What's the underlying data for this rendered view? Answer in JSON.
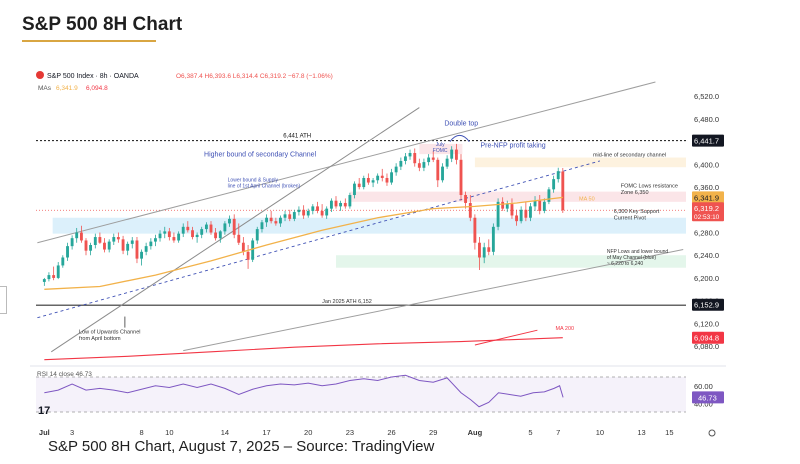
{
  "page": {
    "title": "S&P 500 8H Chart",
    "caption": "S&P 500 8H Chart, August 7, 2025 – Source: TradingView"
  },
  "chart_data": {
    "type": "candlestick",
    "instrument": "S&P 500 Index · 8h · OANDA",
    "ohlc_header": {
      "O": "6,387.4",
      "H": "6,393.6",
      "L": "6,314.4",
      "C": "6,319.2",
      "change": "−67.8 (−1.06%)"
    },
    "ma_header": {
      "label": "MAs",
      "ma50": "6,341.9",
      "ma200": "6,094.8"
    },
    "x_ticks": [
      {
        "label": "Jul",
        "day": 0,
        "bold": true
      },
      {
        "label": "3",
        "day": 2
      },
      {
        "label": "8",
        "day": 7
      },
      {
        "label": "10",
        "day": 9
      },
      {
        "label": "14",
        "day": 13
      },
      {
        "label": "17",
        "day": 16
      },
      {
        "label": "20",
        "day": 19
      },
      {
        "label": "23",
        "day": 22
      },
      {
        "label": "26",
        "day": 25
      },
      {
        "label": "29",
        "day": 28
      },
      {
        "label": "Aug",
        "day": 31,
        "bold": true
      },
      {
        "label": "5",
        "day": 35
      },
      {
        "label": "7",
        "day": 37
      },
      {
        "label": "10",
        "day": 40
      },
      {
        "label": "13",
        "day": 43
      },
      {
        "label": "15",
        "day": 45
      }
    ],
    "y_ticks": [
      "6,080.0",
      "6,120.0",
      "6,160.0",
      "6,200.0",
      "6,240.0",
      "6,280.0",
      "6,320.0",
      "6,360.0",
      "6,400.0",
      "6,440.0",
      "6,480.0",
      "6,520.0"
    ],
    "y_tick_values": [
      6080,
      6120,
      6160,
      6200,
      6240,
      6280,
      6320,
      6360,
      6400,
      6440,
      6480,
      6520
    ],
    "ylim": [
      6052,
      6545
    ],
    "xlim": [
      -0.6,
      46.2
    ],
    "candles": [
      [
        0.0,
        6193,
        6200,
        6186,
        6198
      ],
      [
        0.33,
        6198,
        6210,
        6194,
        6205
      ],
      [
        0.67,
        6205,
        6220,
        6196,
        6200
      ],
      [
        1.0,
        6200,
        6228,
        6198,
        6222
      ],
      [
        1.33,
        6222,
        6240,
        6218,
        6236
      ],
      [
        1.67,
        6236,
        6262,
        6230,
        6256
      ],
      [
        2.0,
        6256,
        6275,
        6250,
        6270
      ],
      [
        2.33,
        6270,
        6288,
        6262,
        6280
      ],
      [
        2.67,
        6280,
        6292,
        6262,
        6266
      ],
      [
        3.0,
        6266,
        6270,
        6240,
        6248
      ],
      [
        3.33,
        6248,
        6262,
        6240,
        6258
      ],
      [
        3.67,
        6258,
        6278,
        6252,
        6272
      ],
      [
        4.0,
        6272,
        6280,
        6260,
        6262
      ],
      [
        4.33,
        6262,
        6270,
        6245,
        6250
      ],
      [
        4.67,
        6250,
        6268,
        6245,
        6264
      ],
      [
        5.0,
        6264,
        6278,
        6258,
        6272
      ],
      [
        5.33,
        6272,
        6280,
        6262,
        6268
      ],
      [
        5.67,
        6268,
        6274,
        6242,
        6248
      ],
      [
        6.0,
        6248,
        6264,
        6240,
        6260
      ],
      [
        6.33,
        6260,
        6272,
        6252,
        6266
      ],
      [
        6.67,
        6266,
        6272,
        6226,
        6234
      ],
      [
        7.0,
        6234,
        6250,
        6222,
        6246
      ],
      [
        7.33,
        6246,
        6262,
        6240,
        6256
      ],
      [
        7.67,
        6256,
        6270,
        6250,
        6264
      ],
      [
        8.0,
        6264,
        6276,
        6256,
        6270
      ],
      [
        8.33,
        6270,
        6284,
        6264,
        6278
      ],
      [
        8.67,
        6278,
        6290,
        6270,
        6282
      ],
      [
        9.0,
        6282,
        6288,
        6266,
        6272
      ],
      [
        9.33,
        6272,
        6280,
        6262,
        6266
      ],
      [
        9.67,
        6266,
        6282,
        6262,
        6278
      ],
      [
        10.0,
        6278,
        6296,
        6272,
        6290
      ],
      [
        10.33,
        6290,
        6300,
        6280,
        6284
      ],
      [
        10.67,
        6284,
        6290,
        6268,
        6272
      ],
      [
        11.0,
        6272,
        6280,
        6262,
        6276
      ],
      [
        11.33,
        6276,
        6290,
        6270,
        6286
      ],
      [
        11.67,
        6286,
        6298,
        6280,
        6294
      ],
      [
        12.0,
        6294,
        6300,
        6276,
        6280
      ],
      [
        12.33,
        6280,
        6288,
        6266,
        6270
      ],
      [
        12.67,
        6270,
        6284,
        6262,
        6282
      ],
      [
        13.0,
        6282,
        6300,
        6276,
        6296
      ],
      [
        13.33,
        6296,
        6310,
        6290,
        6304
      ],
      [
        13.67,
        6304,
        6312,
        6270,
        6276
      ],
      [
        14.0,
        6276,
        6296,
        6258,
        6262
      ],
      [
        14.33,
        6262,
        6272,
        6240,
        6246
      ],
      [
        14.67,
        6246,
        6258,
        6216,
        6232
      ],
      [
        15.0,
        6232,
        6270,
        6228,
        6266
      ],
      [
        15.33,
        6266,
        6290,
        6260,
        6286
      ],
      [
        15.67,
        6286,
        6302,
        6280,
        6298
      ],
      [
        16.0,
        6298,
        6312,
        6290,
        6306
      ],
      [
        16.33,
        6306,
        6318,
        6296,
        6300
      ],
      [
        16.67,
        6300,
        6306,
        6292,
        6296
      ],
      [
        17.0,
        6296,
        6310,
        6290,
        6306
      ],
      [
        17.33,
        6306,
        6318,
        6300,
        6312
      ],
      [
        17.67,
        6312,
        6320,
        6300,
        6304
      ],
      [
        18.0,
        6304,
        6320,
        6300,
        6316
      ],
      [
        18.33,
        6316,
        6326,
        6310,
        6320
      ],
      [
        18.67,
        6320,
        6328,
        6304,
        6310
      ],
      [
        19.0,
        6310,
        6322,
        6306,
        6318
      ],
      [
        19.33,
        6318,
        6330,
        6312,
        6326
      ],
      [
        19.67,
        6326,
        6334,
        6314,
        6318
      ],
      [
        20.0,
        6318,
        6330,
        6306,
        6310
      ],
      [
        20.33,
        6310,
        6326,
        6304,
        6322
      ],
      [
        20.67,
        6322,
        6340,
        6316,
        6336
      ],
      [
        21.0,
        6336,
        6344,
        6322,
        6326
      ],
      [
        21.33,
        6326,
        6336,
        6318,
        6332
      ],
      [
        21.67,
        6332,
        6340,
        6322,
        6326
      ],
      [
        22.0,
        6326,
        6350,
        6322,
        6346
      ],
      [
        22.33,
        6346,
        6370,
        6340,
        6366
      ],
      [
        22.67,
        6366,
        6376,
        6356,
        6360
      ],
      [
        23.0,
        6360,
        6380,
        6356,
        6376
      ],
      [
        23.33,
        6376,
        6384,
        6364,
        6368
      ],
      [
        23.67,
        6368,
        6376,
        6360,
        6372
      ],
      [
        24.0,
        6372,
        6384,
        6366,
        6380
      ],
      [
        24.33,
        6380,
        6392,
        6370,
        6376
      ],
      [
        24.67,
        6376,
        6384,
        6362,
        6368
      ],
      [
        25.0,
        6368,
        6392,
        6364,
        6386
      ],
      [
        25.33,
        6386,
        6402,
        6380,
        6396
      ],
      [
        25.67,
        6396,
        6412,
        6390,
        6406
      ],
      [
        26.0,
        6406,
        6420,
        6400,
        6414
      ],
      [
        26.33,
        6414,
        6426,
        6408,
        6420
      ],
      [
        26.67,
        6420,
        6428,
        6396,
        6402
      ],
      [
        27.0,
        6402,
        6410,
        6388,
        6394
      ],
      [
        27.33,
        6394,
        6410,
        6388,
        6404
      ],
      [
        27.67,
        6404,
        6418,
        6398,
        6412
      ],
      [
        28.0,
        6412,
        6424,
        6404,
        6408
      ],
      [
        28.33,
        6408,
        6412,
        6360,
        6372
      ],
      [
        28.67,
        6372,
        6402,
        6368,
        6396
      ],
      [
        29.0,
        6396,
        6416,
        6392,
        6410
      ],
      [
        29.33,
        6410,
        6432,
        6404,
        6426
      ],
      [
        29.67,
        6426,
        6436,
        6400,
        6408
      ],
      [
        30.0,
        6408,
        6418,
        6336,
        6346
      ],
      [
        30.33,
        6346,
        6352,
        6322,
        6332
      ],
      [
        30.67,
        6332,
        6346,
        6300,
        6306
      ],
      [
        31.0,
        6306,
        6312,
        6250,
        6262
      ],
      [
        31.33,
        6262,
        6272,
        6214,
        6236
      ],
      [
        31.67,
        6236,
        6262,
        6226,
        6254
      ],
      [
        32.0,
        6254,
        6268,
        6240,
        6246
      ],
      [
        32.33,
        6246,
        6296,
        6240,
        6290
      ],
      [
        32.67,
        6290,
        6340,
        6284,
        6334
      ],
      [
        33.0,
        6334,
        6342,
        6318,
        6322
      ],
      [
        33.33,
        6322,
        6336,
        6316,
        6330
      ],
      [
        33.67,
        6330,
        6340,
        6304,
        6310
      ],
      [
        34.0,
        6310,
        6320,
        6292,
        6300
      ],
      [
        34.33,
        6300,
        6326,
        6296,
        6320
      ],
      [
        34.67,
        6320,
        6334,
        6300,
        6306
      ],
      [
        35.0,
        6306,
        6332,
        6300,
        6326
      ],
      [
        35.33,
        6326,
        6344,
        6318,
        6336
      ],
      [
        35.67,
        6336,
        6346,
        6312,
        6318
      ],
      [
        36.0,
        6318,
        6340,
        6314,
        6334
      ],
      [
        36.33,
        6334,
        6360,
        6330,
        6356
      ],
      [
        36.67,
        6356,
        6380,
        6350,
        6374
      ],
      [
        37.0,
        6374,
        6394,
        6368,
        6388
      ],
      [
        37.33,
        6387.4,
        6393.6,
        6314.4,
        6319.2
      ]
    ],
    "rsi": {
      "label": "RSI 14 close",
      "value": "46.73",
      "levels": [
        70,
        30
      ],
      "ylim": [
        30,
        78
      ],
      "y_ticks": [
        "60.00",
        "40.00"
      ],
      "y_tick_values": [
        60,
        40
      ],
      "points": [
        [
          0,
          52
        ],
        [
          1,
          55
        ],
        [
          2,
          62
        ],
        [
          3,
          55
        ],
        [
          4,
          57
        ],
        [
          5,
          55
        ],
        [
          6,
          52
        ],
        [
          7,
          56
        ],
        [
          8,
          60
        ],
        [
          9,
          58
        ],
        [
          10,
          62
        ],
        [
          11,
          58
        ],
        [
          12,
          62
        ],
        [
          13,
          57
        ],
        [
          14,
          50
        ],
        [
          15,
          56
        ],
        [
          16,
          60
        ],
        [
          17,
          62
        ],
        [
          18,
          61
        ],
        [
          19,
          63
        ],
        [
          20,
          60
        ],
        [
          21,
          62
        ],
        [
          22,
          66
        ],
        [
          23,
          68
        ],
        [
          24,
          66
        ],
        [
          25,
          70
        ],
        [
          26,
          72
        ],
        [
          27,
          66
        ],
        [
          28,
          64
        ],
        [
          29,
          69
        ],
        [
          30,
          52
        ],
        [
          30.7,
          44
        ],
        [
          31.3,
          36
        ],
        [
          32,
          41
        ],
        [
          32.7,
          52
        ],
        [
          33.5,
          50
        ],
        [
          34.3,
          48
        ],
        [
          35.2,
          52
        ],
        [
          36,
          53
        ],
        [
          36.7,
          57
        ],
        [
          37.1,
          60
        ],
        [
          37.35,
          46.73
        ]
      ]
    },
    "ma50": [
      [
        0,
        6180
      ],
      [
        4,
        6185
      ],
      [
        8,
        6205
      ],
      [
        12,
        6230
      ],
      [
        16,
        6258
      ],
      [
        20,
        6284
      ],
      [
        24,
        6306
      ],
      [
        28,
        6322
      ],
      [
        31,
        6326
      ],
      [
        34,
        6332
      ],
      [
        37.33,
        6341.9
      ]
    ],
    "ma200": [
      [
        0,
        6056
      ],
      [
        6,
        6062
      ],
      [
        12,
        6070
      ],
      [
        18,
        6078
      ],
      [
        24,
        6084
      ],
      [
        30,
        6088
      ],
      [
        37.33,
        6094.8
      ]
    ],
    "price_labels": {
      "ath": "6,441.7",
      "ma50": "6,341.9",
      "last": "6,319.2",
      "countdown": "02:53:10",
      "jan_ath": "6,152.9",
      "ma200": "6,094.8"
    },
    "annotations": {
      "ath_line": "6,441 ATH",
      "double_top": "Double top",
      "pre_nfp": "Pre-NFP profit taking",
      "july_fomc": "July\nFOMC",
      "higher_bound": "Higher bound of secondary Channel",
      "lower_bound": "Lower bound & Supply\nline of 1st April Channel (broken)",
      "midline": "mid-line of secondary channel",
      "fomc_zone": "FOMC Lows resistance\nZone 6,350",
      "key_support": "6,300 Key Support\nCurrent Pivot",
      "nfp_lows": "NFP Lows and lower bound\nof May Channel (blue)\n~ 6,220 to 6,240",
      "jan_ath": "Jan 2025 ATH 6,152",
      "low_channel": "Low of Upwards Channel\nfrom April bottom",
      "ma50_label": "MA 50",
      "ma200_label": "MA 200",
      "tv_logo": "17"
    },
    "colors": {
      "up": "#26a69a",
      "down": "#ef5350",
      "ma50": "#f2b24a",
      "ma200": "#f23645",
      "rsi": "#7e57c2",
      "annot": "#3f51b5",
      "zone_blue": "#bfe3f7",
      "zone_red": "#f8d0d6",
      "zone_orange": "#fbe7c4",
      "zone_green": "#cdeedb"
    }
  }
}
